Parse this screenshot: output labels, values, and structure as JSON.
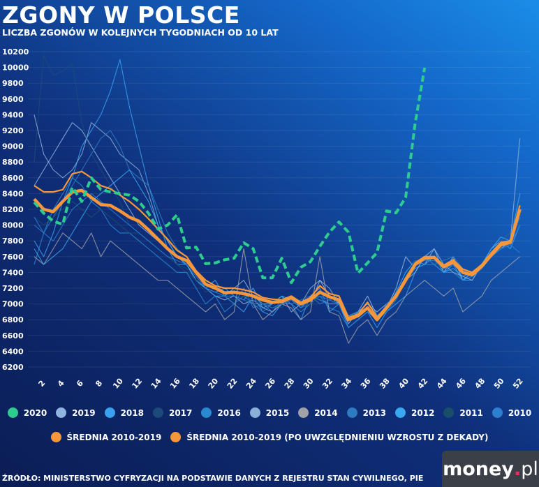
{
  "header": {
    "title": "ZGONY W POLSCE",
    "subtitle": "LICZBA ZGONÓW W KOLEJNYCH TYGODNIACH OD 10 LAT"
  },
  "footer": {
    "source": "ŹRÓDŁO: MINISTERSTWO CYFRYZACJI NA PODSTAWIE DANYCH Z REJESTRU STAN CYWILNEGO, PIE",
    "logo": "money.pl"
  },
  "chart_data": {
    "type": "line",
    "title": "ZGONY W POLSCE",
    "subtitle": "LICZBA ZGONÓW W KOLEJNYCH TYGODNIACH OD 10 LAT",
    "xlabel": "",
    "ylabel": "",
    "ylim": [
      6200,
      10200
    ],
    "yticks": [
      "6200",
      "6400",
      "6600",
      "6800",
      "7000",
      "7200",
      "7400",
      "7600",
      "7800",
      "8000",
      "8200",
      "8400",
      "8600",
      "8800",
      "9000",
      "9200",
      "9400",
      "9600",
      "9800",
      "10000",
      "10200"
    ],
    "xticks": [
      "2",
      "4",
      "6",
      "8",
      "10",
      "12",
      "14",
      "16",
      "18",
      "20",
      "22",
      "24",
      "26",
      "28",
      "30",
      "32",
      "34",
      "36",
      "38",
      "40",
      "42",
      "44",
      "46",
      "48",
      "50",
      "52"
    ],
    "xlim": [
      1,
      52
    ],
    "grid": "horizontal",
    "legend_position": "bottom",
    "series": [
      {
        "name": "2019",
        "color": "#8fb4e0",
        "values": [
          8500,
          8700,
          8900,
          9100,
          9300,
          9200,
          9000,
          8800,
          8600,
          8400,
          8200,
          8000,
          7900,
          7800,
          7700,
          7600,
          7500,
          7300,
          7200,
          7100,
          7050,
          7100,
          7000,
          7050,
          6950,
          6900,
          7000,
          7100,
          6950,
          7000,
          7300,
          7100,
          7000,
          6750,
          6900,
          7100,
          6850,
          6950,
          7200,
          7600,
          7450,
          7500,
          7700,
          7400,
          7600,
          7300,
          7400,
          7500,
          7700,
          7800,
          7900,
          8300
        ]
      },
      {
        "name": "2018",
        "color": "#3aa0f0",
        "values": [
          7800,
          7600,
          7900,
          8300,
          8600,
          9000,
          9200,
          9400,
          9700,
          10100,
          9500,
          9000,
          8500,
          8100,
          7700,
          7500,
          7500,
          7300,
          7200,
          7100,
          7100,
          7000,
          6900,
          7100,
          6900,
          6850,
          7000,
          7000,
          6800,
          7100,
          7200,
          6900,
          7000,
          6700,
          6800,
          6900,
          6700,
          6900,
          7000,
          7100,
          7400,
          7600,
          7500,
          7400,
          7500,
          7300,
          7300,
          7500,
          7600,
          7800,
          7700,
          8000
        ]
      },
      {
        "name": "2017",
        "color": "#1d4a7a",
        "values": [
          8800,
          10150,
          9900,
          9950,
          10050,
          9300,
          8900,
          8700,
          8500,
          8300,
          8000,
          7900,
          7800,
          7700,
          7600,
          7500,
          7400,
          7300,
          7200,
          7150,
          7100,
          7200,
          7100,
          7000,
          7050,
          7000,
          6950,
          7100,
          7000,
          7000,
          7100,
          7000,
          7050,
          6850,
          6900,
          7000,
          6850,
          6950,
          7100,
          7200,
          7500,
          7600,
          7500,
          7450,
          7500,
          7450,
          7400,
          7500,
          7650,
          7800,
          7900,
          8300
        ]
      },
      {
        "name": "2016",
        "color": "#2a88d0",
        "values": [
          7500,
          7900,
          8200,
          8400,
          8600,
          8500,
          8300,
          8200,
          8000,
          7900,
          7900,
          7800,
          7700,
          7600,
          7500,
          7400,
          7400,
          7200,
          7000,
          7100,
          6900,
          7000,
          7200,
          6950,
          7000,
          6900,
          7050,
          7000,
          6900,
          7000,
          7100,
          6950,
          6900,
          6700,
          6800,
          6900,
          6800,
          6900,
          7050,
          7300,
          7450,
          7500,
          7500,
          7400,
          7400,
          7300,
          7350,
          7450,
          7600,
          7700,
          7800,
          8100
        ]
      },
      {
        "name": "2015",
        "color": "#8ab0d8",
        "values": [
          9400,
          8900,
          8700,
          8600,
          8700,
          8900,
          9300,
          9200,
          9100,
          8900,
          8800,
          8700,
          8400,
          8000,
          7800,
          7600,
          7500,
          7300,
          7200,
          7300,
          7100,
          7200,
          7300,
          7100,
          7000,
          7000,
          7100,
          6900,
          7000,
          7200,
          7300,
          7200,
          7000,
          6800,
          6900,
          7000,
          6900,
          7000,
          7100,
          7300,
          7400,
          7600,
          7700,
          7500,
          7400,
          7350,
          7300,
          7500,
          7600,
          7700,
          7800,
          9100
        ]
      },
      {
        "name": "2014",
        "color": "#a0a0a8",
        "values": [
          7600,
          7500,
          7700,
          7900,
          7800,
          7700,
          7900,
          7600,
          7800,
          7700,
          7600,
          7500,
          7400,
          7300,
          7300,
          7200,
          7100,
          7000,
          6900,
          7000,
          6800,
          6900,
          7700,
          7000,
          6800,
          6900,
          7000,
          6950,
          6800,
          6900,
          7600,
          6900,
          6850,
          6500,
          6700,
          6800,
          6600,
          6800,
          6900,
          7100,
          7200,
          7300,
          7200,
          7100,
          7200,
          6900,
          7000,
          7100,
          7300,
          7400,
          7500,
          7600
        ]
      },
      {
        "name": "2013",
        "color": "#2f7bc0",
        "values": [
          8000,
          7900,
          8100,
          8300,
          8500,
          8700,
          8900,
          9100,
          9200,
          9000,
          8700,
          8600,
          8500,
          8200,
          7900,
          7700,
          7600,
          7400,
          7200,
          7300,
          7100,
          7000,
          7100,
          7000,
          6900,
          7000,
          7100,
          7000,
          7050,
          7100,
          7000,
          7050,
          7100,
          6800,
          6900,
          6950,
          6800,
          7000,
          7100,
          7300,
          7500,
          7600,
          7500,
          7550,
          7600,
          7450,
          7400,
          7500,
          7600,
          7700,
          7750,
          8000
        ]
      },
      {
        "name": "2012",
        "color": "#3aa8f0",
        "values": [
          7700,
          7500,
          7600,
          7700,
          7900,
          8100,
          8300,
          8400,
          8500,
          8600,
          8700,
          8500,
          8300,
          8000,
          7800,
          7600,
          7500,
          7300,
          7200,
          7150,
          7200,
          7100,
          7050,
          7200,
          6950,
          7000,
          7100,
          7050,
          6950,
          7100,
          7050,
          7000,
          7000,
          6850,
          6900,
          7000,
          6850,
          6950,
          7150,
          7400,
          7550,
          7500,
          7600,
          7400,
          7450,
          7350,
          7400,
          7500,
          7700,
          7850,
          7800,
          8400
        ]
      },
      {
        "name": "2011",
        "color": "#1a4d6a",
        "values": [
          8100,
          8000,
          8100,
          8200,
          8300,
          8200,
          8100,
          8200,
          8100,
          8000,
          7900,
          7900,
          7800,
          7700,
          7600,
          7500,
          7450,
          7300,
          7150,
          7200,
          7100,
          7050,
          7100,
          7050,
          7000,
          6950,
          7000,
          7050,
          6950,
          7000,
          7100,
          7050,
          7000,
          6800,
          6850,
          6950,
          6800,
          6950,
          7100,
          7350,
          7550,
          7600,
          7550,
          7450,
          7550,
          7400,
          7400,
          7500,
          7650,
          7750,
          7800,
          8150
        ]
      },
      {
        "name": "2010",
        "color": "#2e7fd0",
        "values": [
          8100,
          7900,
          7800,
          8000,
          8200,
          8300,
          8400,
          8300,
          8200,
          8100,
          8000,
          7900,
          7800,
          7700,
          7600,
          7550,
          7500,
          7350,
          7200,
          7150,
          7100,
          7100,
          7050,
          7000,
          7000,
          6950,
          7000,
          7050,
          6950,
          7050,
          7100,
          7050,
          7000,
          6800,
          6850,
          6950,
          6800,
          6950,
          7100,
          7300,
          7500,
          7550,
          7550,
          7450,
          7500,
          7400,
          7350,
          7450,
          7600,
          7700,
          7750,
          7650
        ]
      },
      {
        "name": "ŚREDNIA 2010-2019 (PO UWZGLĘDNIENIU WZROSTU Z DEKADY)",
        "color": "#f7963a",
        "style": "thin",
        "values": [
          8500,
          8420,
          8420,
          8450,
          8650,
          8680,
          8600,
          8500,
          8460,
          8380,
          8300,
          8200,
          8080,
          7950,
          7820,
          7680,
          7600,
          7420,
          7300,
          7230,
          7200,
          7200,
          7180,
          7150,
          7080,
          7060,
          7050,
          7100,
          7020,
          7080,
          7230,
          7130,
          7100,
          6830,
          6870,
          7020,
          6830,
          6970,
          7120,
          7330,
          7520,
          7600,
          7600,
          7490,
          7560,
          7440,
          7400,
          7500,
          7650,
          7780,
          7800,
          8250
        ]
      },
      {
        "name": "ŚREDNIA 2010-2019",
        "color": "#f7963a",
        "style": "thick",
        "values": [
          8330,
          8200,
          8170,
          8300,
          8420,
          8440,
          8350,
          8260,
          8250,
          8180,
          8100,
          8050,
          7940,
          7820,
          7700,
          7600,
          7550,
          7400,
          7250,
          7200,
          7140,
          7150,
          7130,
          7100,
          7050,
          7020,
          7030,
          7080,
          7000,
          7050,
          7150,
          7090,
          7050,
          6800,
          6850,
          6950,
          6800,
          6950,
          7100,
          7300,
          7500,
          7580,
          7590,
          7470,
          7530,
          7400,
          7370,
          7480,
          7620,
          7750,
          7780,
          8200
        ]
      },
      {
        "name": "2020",
        "color": "#2ecc8f",
        "style": "dashed",
        "values": [
          8290,
          8150,
          8050,
          8010,
          8480,
          8300,
          8600,
          8450,
          8420,
          8400,
          8380,
          8300,
          8150,
          7950,
          8000,
          8130,
          7710,
          7720,
          7510,
          7520,
          7560,
          7580,
          7775,
          7700,
          7330,
          7330,
          7580,
          7270,
          7465,
          7535,
          7730,
          7910,
          8040,
          7910,
          7390,
          7520,
          7650,
          8180,
          8155,
          8350,
          9290,
          9995
        ]
      }
    ]
  },
  "legend": {
    "row1": [
      {
        "label": "2020",
        "color": "#2ecc8f"
      },
      {
        "label": "2019",
        "color": "#8fb4e0"
      },
      {
        "label": "2018",
        "color": "#3aa0f0"
      },
      {
        "label": "2017",
        "color": "#1d4a7a"
      },
      {
        "label": "2016",
        "color": "#2a88d0"
      },
      {
        "label": "2015",
        "color": "#8ab0d8"
      },
      {
        "label": "2014",
        "color": "#a0a0a8"
      },
      {
        "label": "2013",
        "color": "#2f7bc0"
      },
      {
        "label": "2012",
        "color": "#3aa8f0"
      },
      {
        "label": "2011",
        "color": "#1a4d6a"
      },
      {
        "label": "2010",
        "color": "#2e7fd0"
      }
    ],
    "row2": [
      {
        "label": "ŚREDNIA 2010-2019",
        "color": "#f7963a"
      },
      {
        "label": "ŚREDNIA 2010-2019 (PO UWZGLĘDNIENIU WZROSTU Z DEKADY)",
        "color": "#f7963a"
      }
    ]
  }
}
